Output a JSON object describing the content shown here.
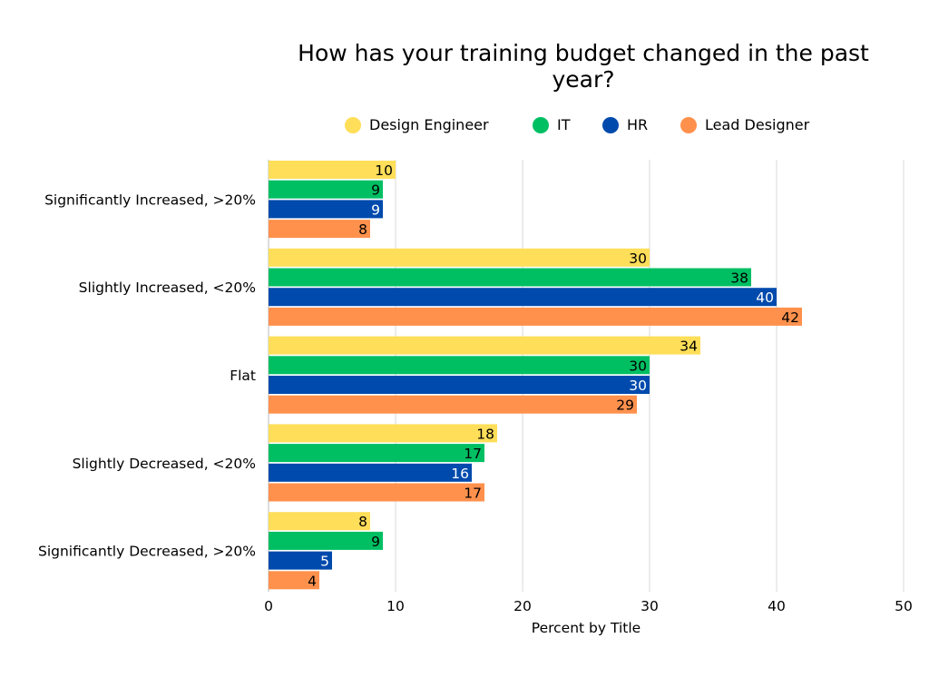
{
  "chart_data": {
    "type": "bar",
    "orientation": "horizontal",
    "title": "How has your training budget changed in the past year?",
    "xlabel": "Percent by Title",
    "ylabel": "",
    "xlim": [
      0,
      50
    ],
    "xticks": [
      "0",
      "10",
      "20",
      "30",
      "40",
      "50"
    ],
    "grid": true,
    "legend_position": "top",
    "categories": [
      "Significantly Increased, >20%",
      "Slightly Increased, <20%",
      "Flat",
      "Slightly Decreased, <20%",
      "Significantly Decreased, >20%"
    ],
    "series": [
      {
        "name": "Design Engineer",
        "color": "#FFDE59",
        "label_color": "#000000",
        "values": [
          10,
          30,
          34,
          18,
          8
        ]
      },
      {
        "name": "IT",
        "color": "#00BF63",
        "label_color": "#000000",
        "values": [
          9,
          38,
          30,
          17,
          9
        ]
      },
      {
        "name": "HR",
        "color": "#004AAD",
        "label_color": "#FFFFFF",
        "values": [
          9,
          40,
          30,
          16,
          5
        ]
      },
      {
        "name": "Lead Designer",
        "color": "#FF914D",
        "label_color": "#000000",
        "values": [
          8,
          42,
          29,
          17,
          4
        ]
      }
    ]
  }
}
